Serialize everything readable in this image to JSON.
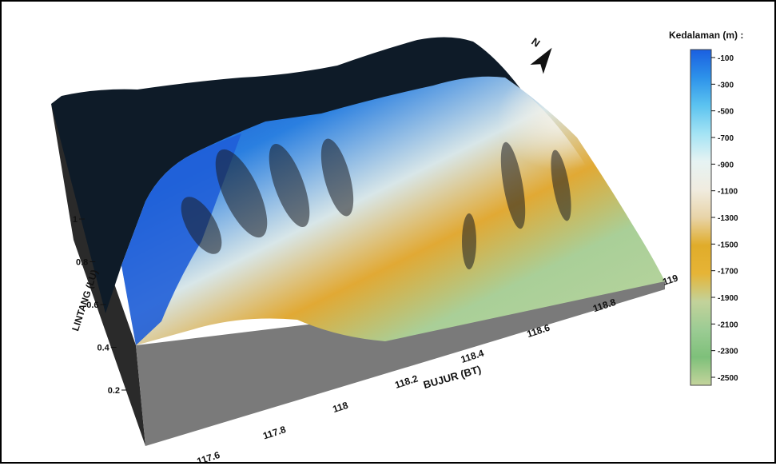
{
  "chart_data": {
    "type": "heatmap",
    "title": "",
    "xlabel": "BUJUR (BT)",
    "ylabel": "LINTANG (LU)",
    "x_ticks": [
      "117.6",
      "117.8",
      "118",
      "118.2",
      "118.4",
      "118.6",
      "118.8",
      "119"
    ],
    "y_ticks": [
      "0.2",
      "0.4",
      "0.6",
      "0.8",
      "1"
    ],
    "xlim": [
      117.5,
      119
    ],
    "ylim": [
      0.1,
      1.2
    ],
    "legend": {
      "title": "Kedalaman (m) :",
      "placement": "right",
      "levels": [
        "-100",
        "-300",
        "-500",
        "-700",
        "-900",
        "-1100",
        "-1300",
        "-1500",
        "-1700",
        "-1900",
        "-2100",
        "-2300",
        "-2500"
      ],
      "colors": [
        "#1a5fe0",
        "#2d92ea",
        "#5cc3f0",
        "#a3e3f4",
        "#e6f3f3",
        "#f0ece0",
        "#e8d4a8",
        "#e0ac2a",
        "#e6b436",
        "#c3d29a",
        "#9ccc94",
        "#7ec07a",
        "#c4d49c"
      ]
    }
  },
  "north_label": "N",
  "colors": {
    "land": "#0e1b28",
    "shallow": "#1d5ad6",
    "wall": "#7a7a7a"
  }
}
